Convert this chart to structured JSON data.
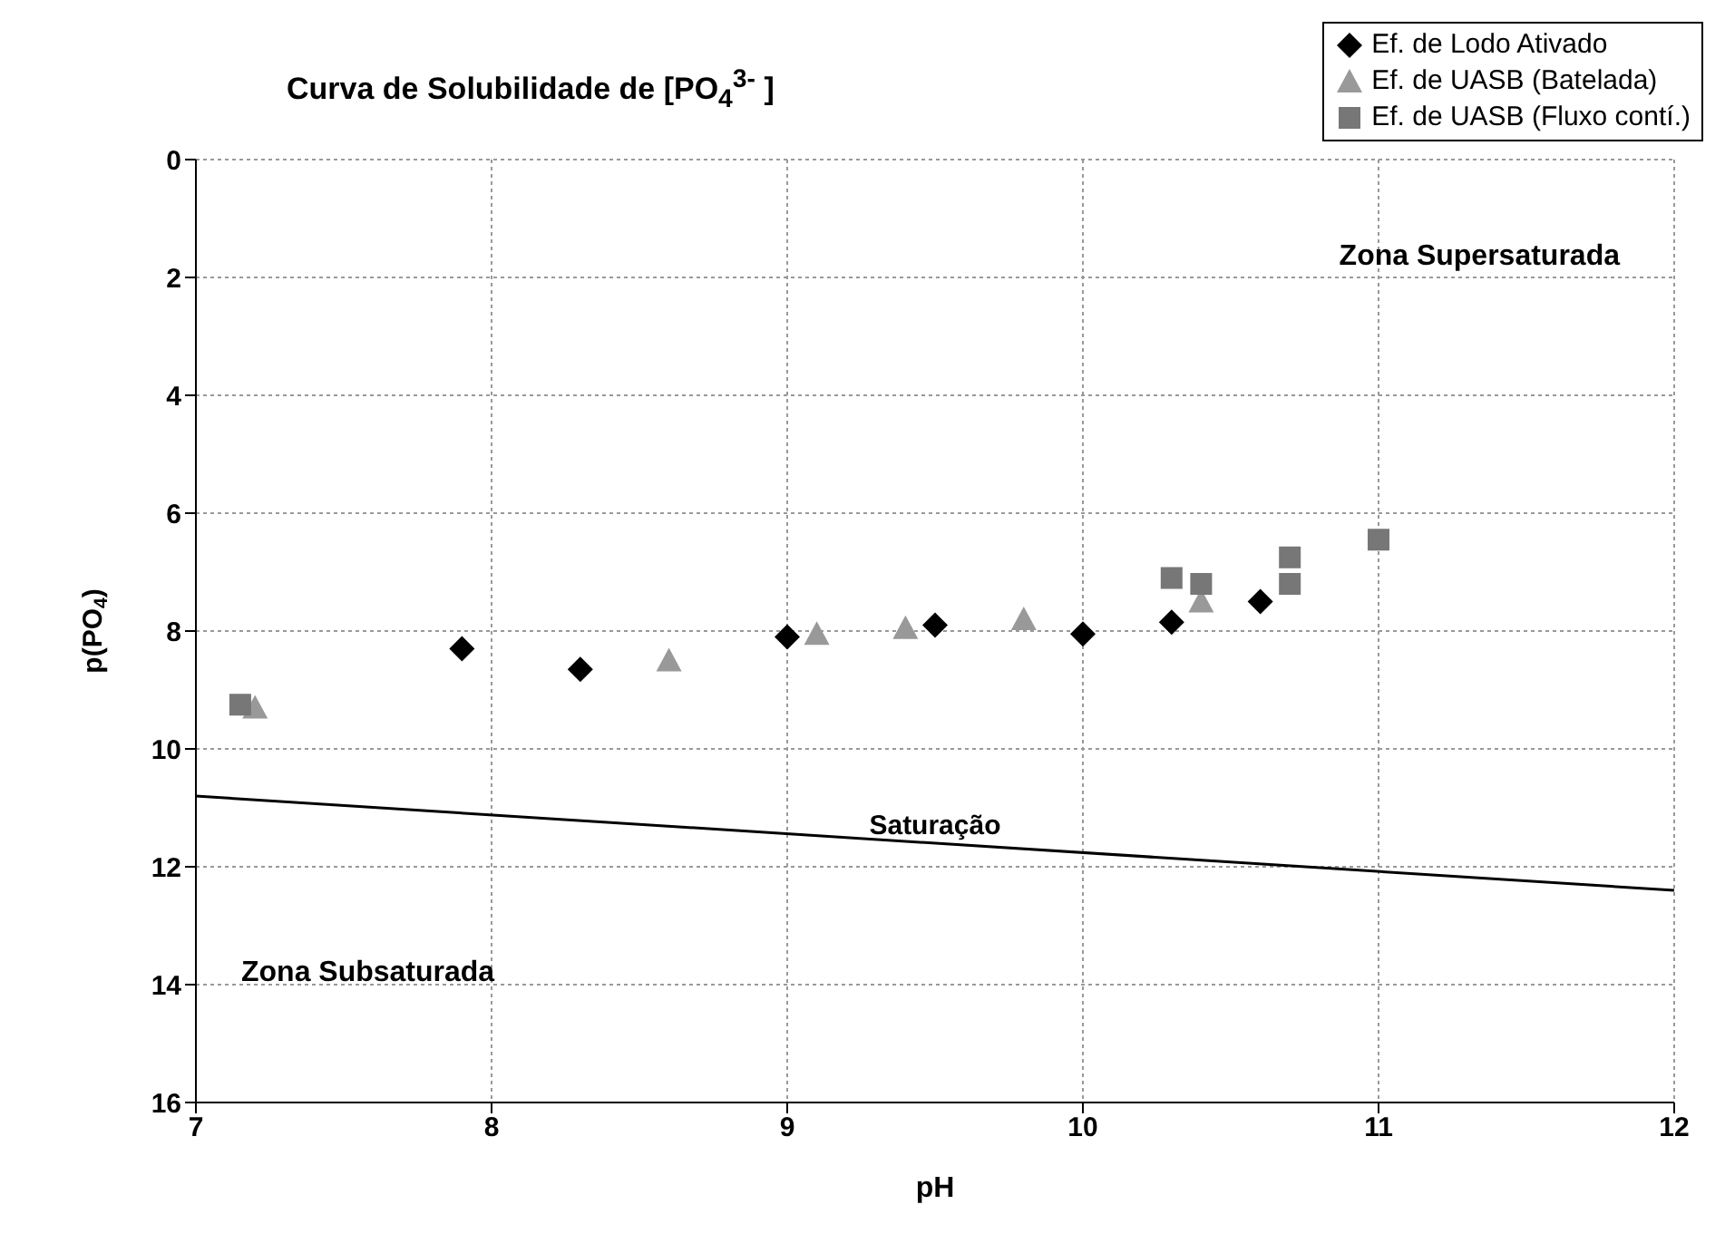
{
  "chart_data": {
    "type": "scatter",
    "title": "Curva de Solubilidade de [PO$_{4}$$^{3-}$ ]",
    "xlabel": "pH",
    "ylabel": "p(PO$_{4}$)",
    "xlim": [
      7,
      12
    ],
    "xticks": [
      7,
      8,
      9,
      10,
      11,
      12
    ],
    "ylim": [
      16,
      0
    ],
    "yticks": [
      0,
      2,
      4,
      6,
      8,
      10,
      12,
      14,
      16
    ],
    "grid": true,
    "legend": "top right",
    "annotations": [
      "Zona Supersaturada",
      "Zona Subsaturada"
    ],
    "series": [
      {
        "name": "Ef. de Lodo Ativado",
        "color": "#000000",
        "marker": "diamond",
        "x": [
          7.9,
          8.3,
          9.0,
          9.5,
          10.0,
          10.3,
          10.6
        ],
        "values": [
          8.3,
          8.65,
          8.1,
          7.9,
          8.05,
          7.85,
          7.5
        ]
      },
      {
        "name": "Ef. de UASB (Batelada)",
        "color": "#999999",
        "marker": "triangle",
        "x": [
          7.2,
          8.6,
          9.1,
          9.4,
          9.8,
          10.4
        ],
        "values": [
          9.3,
          8.5,
          8.05,
          7.95,
          7.8,
          7.5
        ]
      },
      {
        "name": "Ef. de UASB (Fluxo contí.)",
        "color": "#777777",
        "marker": "square",
        "x": [
          7.15,
          10.3,
          10.4,
          10.7,
          10.7,
          11.0
        ],
        "values": [
          9.25,
          7.1,
          7.2,
          6.75,
          7.2,
          6.45
        ]
      },
      {
        "name": "Saturação",
        "type": "line",
        "color": "#000000",
        "marker": "none",
        "x": [
          7,
          12
        ],
        "values": [
          10.8,
          12.4
        ]
      }
    ]
  }
}
